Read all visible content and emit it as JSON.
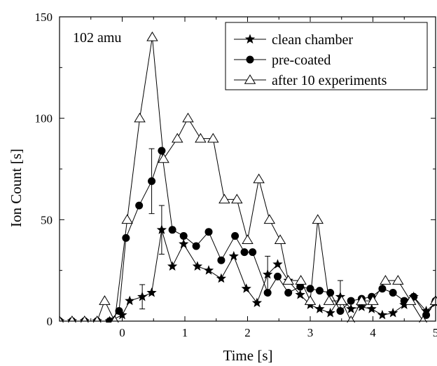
{
  "chart_data": {
    "type": "line",
    "annotation": "102 amu",
    "xlabel": "Time [s]",
    "ylabel": "Ion Count [s]",
    "xlim": [
      -1.0,
      5.0
    ],
    "ylim": [
      0,
      150
    ],
    "x_ticks": [
      0,
      1,
      2,
      3,
      4,
      5
    ],
    "x_tick_labels": [
      "0",
      "1",
      "2",
      "3",
      "4",
      "5"
    ],
    "y_ticks": [
      0,
      50,
      100,
      150
    ],
    "y_tick_labels": [
      "0",
      "50",
      "100",
      "150"
    ],
    "grid": false,
    "legend_position": "top-right",
    "series": [
      {
        "name": "clean chamber",
        "marker": "star",
        "color": "#000000",
        "x": [
          -1.0,
          -0.8,
          -0.6,
          -0.4,
          -0.2,
          0.0,
          0.12,
          0.32,
          0.47,
          0.63,
          0.8,
          0.98,
          1.2,
          1.38,
          1.58,
          1.78,
          1.98,
          2.15,
          2.32,
          2.48,
          2.65,
          2.84,
          3.0,
          3.15,
          3.32,
          3.48,
          3.65,
          3.82,
          3.98,
          4.15,
          4.32,
          4.5,
          4.65,
          4.85,
          5.0
        ],
        "y": [
          0,
          0,
          0,
          0,
          0,
          3,
          10,
          12,
          14,
          45,
          27,
          38,
          27,
          25,
          21,
          32,
          16,
          9,
          23,
          28,
          20,
          13,
          8,
          6,
          4,
          12,
          6,
          7,
          6,
          3,
          4,
          8,
          12,
          5,
          9
        ],
        "error_bars": [
          {
            "x": 0.32,
            "y": 12,
            "err": 6
          },
          {
            "x": 0.63,
            "y": 45,
            "err": 12
          },
          {
            "x": 2.32,
            "y": 23,
            "err": 9
          },
          {
            "x": 3.48,
            "y": 12,
            "err": 8
          }
        ]
      },
      {
        "name": "pre-coated",
        "marker": "circle",
        "color": "#000000",
        "x": [
          -1.0,
          -0.8,
          -0.6,
          -0.4,
          -0.2,
          -0.05,
          0.06,
          0.27,
          0.47,
          0.63,
          0.8,
          0.98,
          1.18,
          1.38,
          1.58,
          1.8,
          1.95,
          2.08,
          2.32,
          2.48,
          2.65,
          2.84,
          3.0,
          3.15,
          3.32,
          3.48,
          3.65,
          3.82,
          3.98,
          4.15,
          4.32,
          4.5,
          4.65,
          4.85,
          5.0
        ],
        "y": [
          0,
          0,
          0,
          0,
          0,
          5,
          41,
          57,
          69,
          84,
          45,
          42,
          37,
          44,
          30,
          42,
          34,
          34,
          14,
          22,
          14,
          17,
          16,
          15,
          14,
          5,
          10,
          11,
          12,
          16,
          14,
          10,
          12,
          3,
          10
        ],
        "error_bars": [
          {
            "x": 0.47,
            "y": 69,
            "err": 16
          }
        ]
      },
      {
        "name": "after 10 experiments",
        "marker": "triangle-open",
        "color": "#000000",
        "x": [
          -1.0,
          -0.8,
          -0.6,
          -0.4,
          -0.28,
          -0.12,
          0.08,
          0.28,
          0.48,
          0.66,
          0.88,
          1.05,
          1.25,
          1.45,
          1.63,
          1.83,
          2.0,
          2.18,
          2.35,
          2.52,
          2.65,
          2.85,
          3.0,
          3.12,
          3.3,
          3.5,
          3.65,
          3.82,
          4.0,
          4.2,
          4.4,
          4.6,
          4.8,
          5.0
        ],
        "y": [
          0,
          0,
          0,
          0,
          10,
          0,
          50,
          100,
          140,
          80,
          90,
          100,
          90,
          90,
          60,
          60,
          40,
          70,
          50,
          40,
          20,
          20,
          10,
          50,
          10,
          10,
          0,
          10,
          10,
          20,
          20,
          10,
          0,
          10
        ]
      }
    ]
  }
}
